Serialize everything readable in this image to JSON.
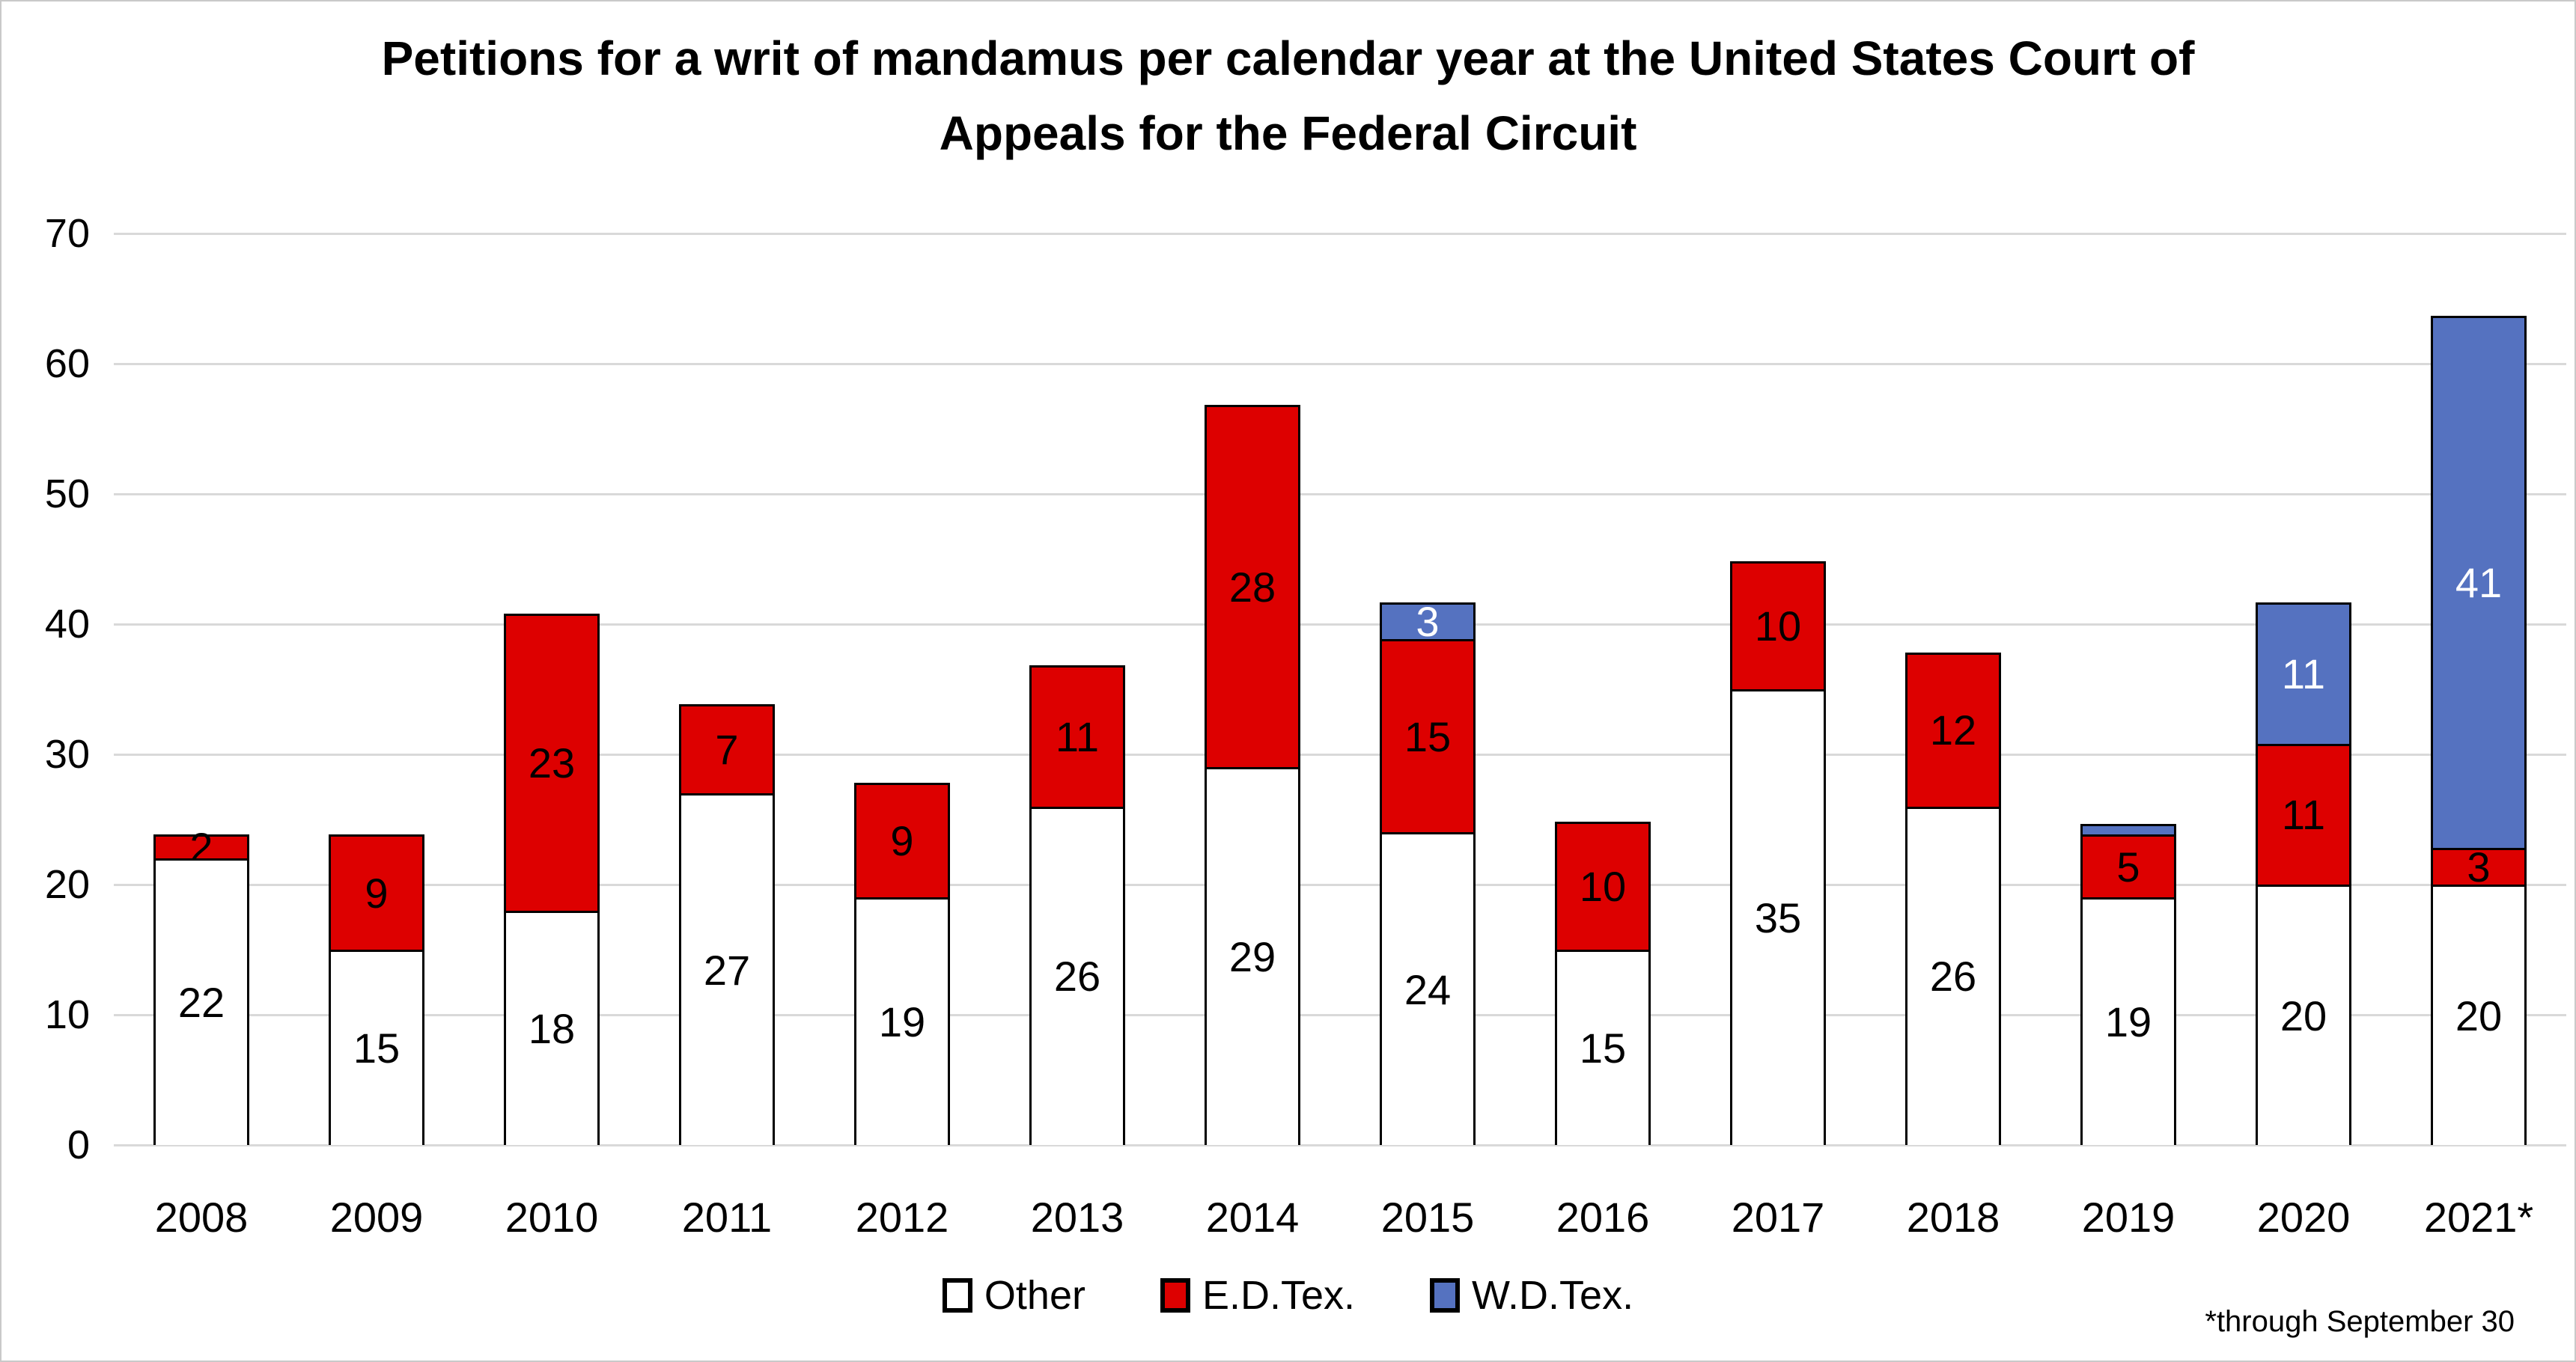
{
  "title_lines": [
    "Petitions for a writ of mandamus per calendar year at the United States Court of",
    "Appeals for the Federal Circuit"
  ],
  "footnote": "*through September 30",
  "colors": {
    "other": "#FFFFFF",
    "edtex": "#DD0000",
    "wdtex": "#5572C0",
    "gridline": "#D9D9D9",
    "bar_border": "#000000"
  },
  "legend": [
    {
      "id": "other",
      "label": "Other",
      "color": "#FFFFFF"
    },
    {
      "id": "edtex",
      "label": "E.D.Tex.",
      "color": "#DD0000"
    },
    {
      "id": "wdtex",
      "label": "W.D.Tex.",
      "color": "#5572C0"
    }
  ],
  "chart_data": {
    "type": "bar",
    "stacked": true,
    "title": "Petitions for a writ of mandamus per calendar year at the United States Court of Appeals for the Federal Circuit",
    "xlabel": "",
    "ylabel": "",
    "ylim": [
      0,
      70
    ],
    "yticks": [
      0,
      10,
      20,
      30,
      40,
      50,
      60,
      70
    ],
    "grid": true,
    "legend_position": "bottom",
    "categories": [
      "2008",
      "2009",
      "2010",
      "2011",
      "2012",
      "2013",
      "2014",
      "2015",
      "2016",
      "2017",
      "2018",
      "2019",
      "2020",
      "2021*"
    ],
    "series": [
      {
        "name": "Other",
        "id": "other",
        "color": "#FFFFFF",
        "label_color": "#000000",
        "values": [
          22,
          15,
          18,
          27,
          19,
          26,
          29,
          24,
          15,
          35,
          26,
          19,
          20,
          20
        ],
        "labels": [
          "22",
          "15",
          "18",
          "27",
          "19",
          "26",
          "29",
          "24",
          "15",
          "35",
          "26",
          "19",
          "20",
          "20"
        ]
      },
      {
        "name": "E.D.Tex.",
        "id": "edtex",
        "color": "#DD0000",
        "label_color": "#000000",
        "values": [
          2,
          9,
          23,
          7,
          9,
          11,
          28,
          15,
          10,
          10,
          12,
          5,
          11,
          3
        ],
        "labels": [
          "2",
          "9",
          "23",
          "7",
          "9",
          "11",
          "28",
          "15",
          "10",
          "10",
          "12",
          "5",
          "11",
          "3"
        ]
      },
      {
        "name": "W.D.Tex.",
        "id": "wdtex",
        "color": "#5572C0",
        "label_color": "#FFFFFF",
        "values": [
          0,
          0,
          0,
          0,
          0,
          0,
          0,
          3,
          0,
          0,
          0,
          1,
          11,
          41
        ],
        "labels": [
          "",
          "",
          "",
          "",
          "",
          "",
          "",
          "3",
          "",
          "",
          "",
          "",
          "11",
          "41"
        ]
      }
    ]
  }
}
